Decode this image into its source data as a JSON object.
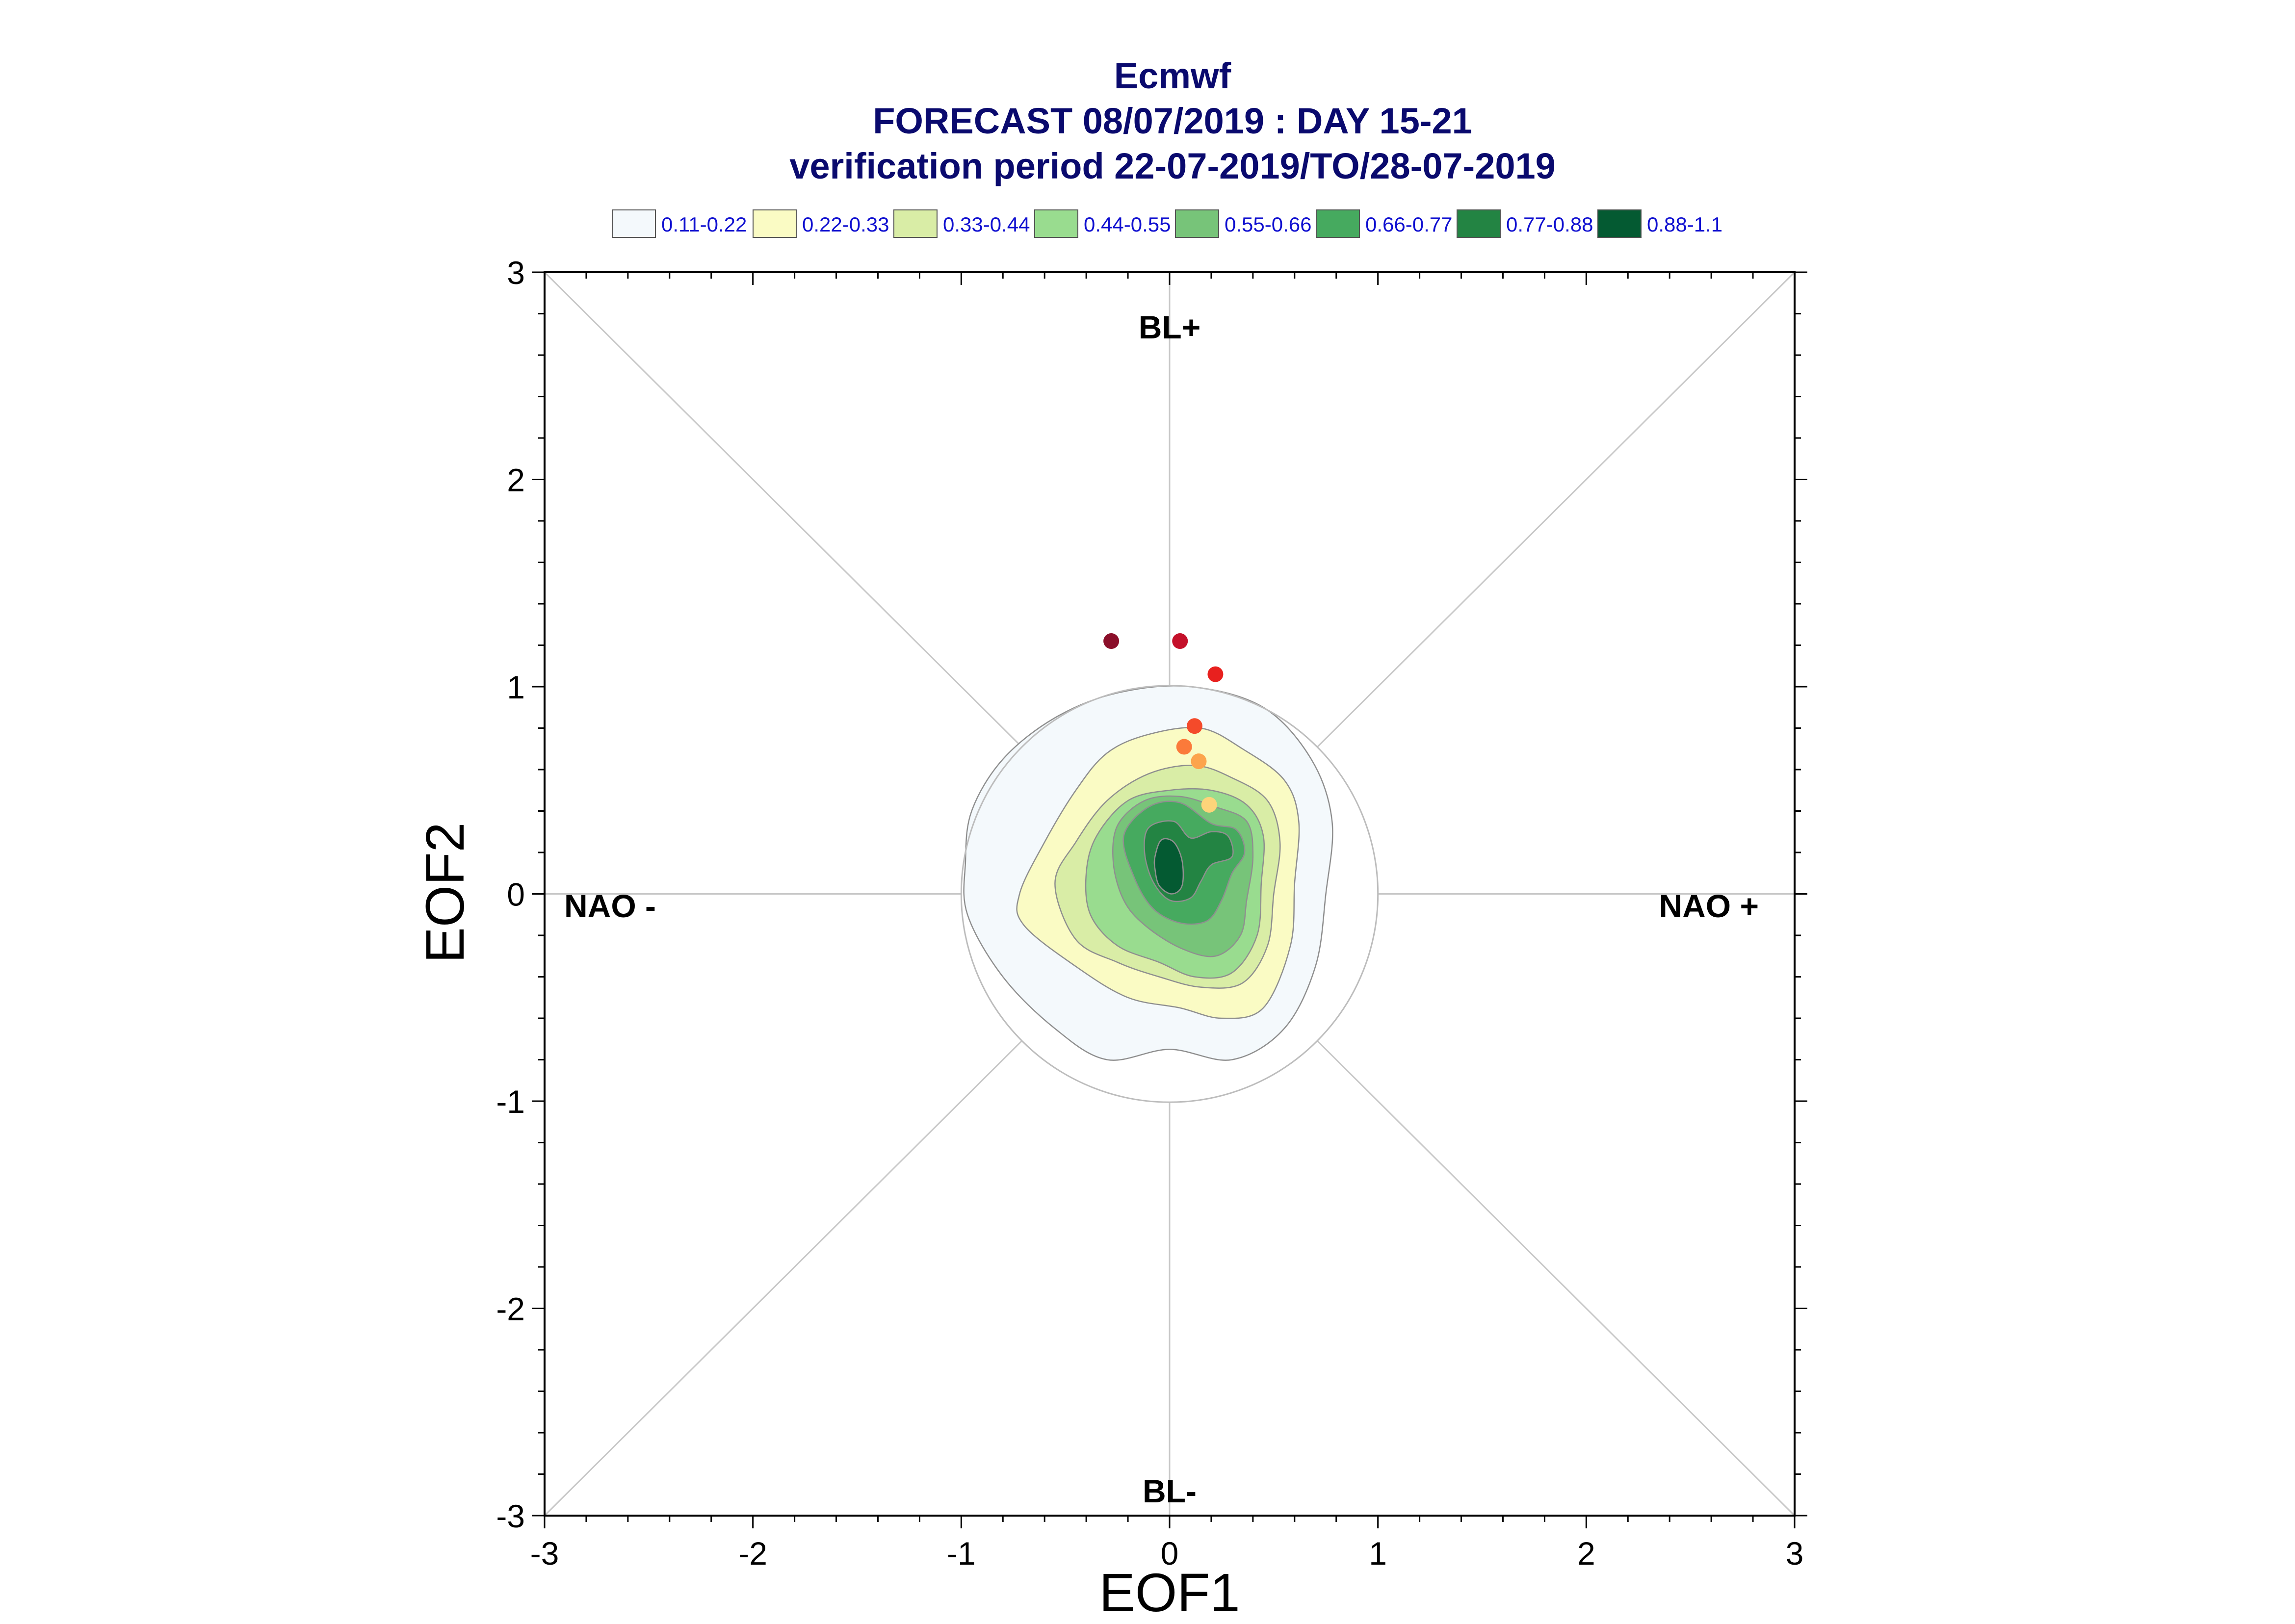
{
  "chart_data": {
    "type": "scatter",
    "title_lines": [
      "Ecmwf",
      "FORECAST 08/07/2019 : DAY 15-21",
      "verification period 22-07-2019/TO/28-07-2019"
    ],
    "xlabel": "EOF1",
    "ylabel": "EOF2",
    "xlim": [
      -3,
      3
    ],
    "ylim": [
      -3,
      3
    ],
    "x_ticks": [
      "-3",
      "-2",
      "-1",
      "0",
      "1",
      "2",
      "3"
    ],
    "y_ticks": [
      "-3",
      "-2",
      "-1",
      "0",
      "1",
      "2",
      "3"
    ],
    "region_labels": {
      "top": "BL+",
      "bottom": "BL-",
      "left": "NAO -",
      "right": "NAO +"
    },
    "legend": [
      {
        "label": "0.11-0.22",
        "color": "#f4f9fc"
      },
      {
        "label": "0.22-0.33",
        "color": "#fafbc4"
      },
      {
        "label": "0.33-0.44",
        "color": "#d9eda6"
      },
      {
        "label": "0.44-0.55",
        "color": "#99dc8f"
      },
      {
        "label": "0.55-0.66",
        "color": "#77c479"
      },
      {
        "label": "0.66-0.77",
        "color": "#46aa5f"
      },
      {
        "label": "0.77-0.88",
        "color": "#238443"
      },
      {
        "label": "0.88-1.1",
        "color": "#045a32"
      }
    ],
    "points": [
      {
        "x": -0.28,
        "y": 1.22,
        "color": "#8b0f2a"
      },
      {
        "x": 0.05,
        "y": 1.22,
        "color": "#c4102a"
      },
      {
        "x": 0.22,
        "y": 1.06,
        "color": "#e8201e"
      },
      {
        "x": 0.12,
        "y": 0.81,
        "color": "#f44a2a"
      },
      {
        "x": 0.07,
        "y": 0.71,
        "color": "#fb7a3a"
      },
      {
        "x": 0.14,
        "y": 0.64,
        "color": "#fca44c"
      },
      {
        "x": 0.19,
        "y": 0.43,
        "color": "#fdd47a"
      }
    ],
    "reference_circle_radius": 1.0,
    "density_contours": [
      {
        "level": "0.11-0.22",
        "shape": [
          [
            -0.98,
            0.15
          ],
          [
            -0.95,
            0.4
          ],
          [
            -0.8,
            0.65
          ],
          [
            -0.55,
            0.85
          ],
          [
            -0.25,
            0.97
          ],
          [
            0.1,
            1.0
          ],
          [
            0.45,
            0.9
          ],
          [
            0.68,
            0.65
          ],
          [
            0.78,
            0.35
          ],
          [
            0.75,
            0.0
          ],
          [
            0.7,
            -0.35
          ],
          [
            0.55,
            -0.65
          ],
          [
            0.3,
            -0.8
          ],
          [
            0.0,
            -0.75
          ],
          [
            -0.3,
            -0.8
          ],
          [
            -0.55,
            -0.65
          ],
          [
            -0.8,
            -0.4
          ],
          [
            -0.97,
            -0.1
          ]
        ]
      },
      {
        "level": "0.22-0.33",
        "shape": [
          [
            -0.72,
            0.0
          ],
          [
            -0.6,
            0.25
          ],
          [
            -0.45,
            0.5
          ],
          [
            -0.3,
            0.68
          ],
          [
            -0.1,
            0.77
          ],
          [
            0.15,
            0.8
          ],
          [
            0.35,
            0.7
          ],
          [
            0.55,
            0.55
          ],
          [
            0.62,
            0.35
          ],
          [
            0.6,
            0.05
          ],
          [
            0.58,
            -0.25
          ],
          [
            0.45,
            -0.55
          ],
          [
            0.25,
            -0.6
          ],
          [
            0.05,
            -0.55
          ],
          [
            -0.2,
            -0.5
          ],
          [
            -0.45,
            -0.35
          ],
          [
            -0.7,
            -0.15
          ]
        ]
      },
      {
        "level": "0.33-0.44",
        "shape": [
          [
            -0.55,
            0.05
          ],
          [
            -0.45,
            0.25
          ],
          [
            -0.3,
            0.45
          ],
          [
            -0.1,
            0.58
          ],
          [
            0.12,
            0.62
          ],
          [
            0.3,
            0.56
          ],
          [
            0.47,
            0.45
          ],
          [
            0.53,
            0.25
          ],
          [
            0.5,
            0.0
          ],
          [
            0.47,
            -0.25
          ],
          [
            0.35,
            -0.43
          ],
          [
            0.15,
            -0.45
          ],
          [
            -0.05,
            -0.4
          ],
          [
            -0.25,
            -0.33
          ],
          [
            -0.45,
            -0.22
          ]
        ]
      },
      {
        "level": "0.44-0.55",
        "shape": [
          [
            -0.4,
            0.1
          ],
          [
            -0.35,
            0.28
          ],
          [
            -0.2,
            0.45
          ],
          [
            0.0,
            0.5
          ],
          [
            0.2,
            0.5
          ],
          [
            0.37,
            0.43
          ],
          [
            0.45,
            0.28
          ],
          [
            0.44,
            0.05
          ],
          [
            0.42,
            -0.2
          ],
          [
            0.3,
            -0.38
          ],
          [
            0.12,
            -0.4
          ],
          [
            -0.05,
            -0.33
          ],
          [
            -0.25,
            -0.25
          ],
          [
            -0.38,
            -0.1
          ]
        ]
      },
      {
        "level": "0.55-0.66",
        "shape": [
          [
            -0.27,
            0.15
          ],
          [
            -0.25,
            0.33
          ],
          [
            -0.12,
            0.45
          ],
          [
            0.05,
            0.47
          ],
          [
            0.22,
            0.42
          ],
          [
            0.37,
            0.35
          ],
          [
            0.4,
            0.18
          ],
          [
            0.37,
            -0.03
          ],
          [
            0.34,
            -0.2
          ],
          [
            0.22,
            -0.3
          ],
          [
            0.05,
            -0.26
          ],
          [
            -0.12,
            -0.15
          ],
          [
            -0.22,
            -0.03
          ]
        ]
      },
      {
        "level": "0.66-0.77",
        "shape": [
          [
            -0.22,
            0.28
          ],
          [
            -0.1,
            0.42
          ],
          [
            0.05,
            0.44
          ],
          [
            0.2,
            0.34
          ],
          [
            0.32,
            0.31
          ],
          [
            0.36,
            0.2
          ],
          [
            0.3,
            0.1
          ],
          [
            0.25,
            -0.03
          ],
          [
            0.18,
            -0.13
          ],
          [
            0.05,
            -0.14
          ],
          [
            -0.08,
            -0.07
          ],
          [
            -0.17,
            0.08
          ]
        ]
      },
      {
        "level": "0.77-0.88",
        "shape": [
          [
            -0.1,
            0.32
          ],
          [
            0.02,
            0.35
          ],
          [
            0.1,
            0.27
          ],
          [
            0.2,
            0.3
          ],
          [
            0.28,
            0.28
          ],
          [
            0.3,
            0.18
          ],
          [
            0.2,
            0.14
          ],
          [
            0.15,
            0.06
          ],
          [
            0.1,
            -0.02
          ],
          [
            0.0,
            -0.03
          ],
          [
            -0.08,
            0.06
          ],
          [
            -0.12,
            0.2
          ]
        ]
      },
      {
        "level": "0.88-1.1",
        "shape": [
          [
            -0.07,
            0.18
          ],
          [
            -0.04,
            0.26
          ],
          [
            0.02,
            0.25
          ],
          [
            0.06,
            0.16
          ],
          [
            0.06,
            0.04
          ],
          [
            0.01,
            -0.0
          ],
          [
            -0.05,
            0.04
          ],
          [
            -0.07,
            0.12
          ]
        ]
      }
    ]
  }
}
